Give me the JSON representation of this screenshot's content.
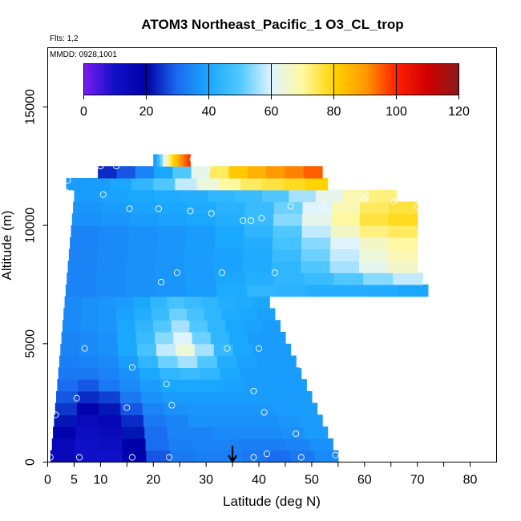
{
  "chart_data": {
    "type": "heatmap",
    "title": "ATOM3 Northeast_Pacific_1 O3_CL_trop",
    "annotations": [
      "Flts: 1,2",
      "MMDD: 0928,1001"
    ],
    "xlabel": "Latitude (deg N)",
    "ylabel": "Altitude (m)",
    "xlim": [
      0,
      85
    ],
    "ylim": [
      0,
      17500
    ],
    "x_ticks": [
      0,
      5,
      10,
      20,
      30,
      40,
      50,
      60,
      70,
      80
    ],
    "y_ticks": [
      0,
      5000,
      10000,
      15000
    ],
    "colorbar": {
      "min": 0,
      "max": 120,
      "ticks": [
        0,
        20,
        40,
        60,
        80,
        100,
        120
      ],
      "colors": [
        "#7a1cf0",
        "#1010c8",
        "#0000a8",
        "#1a6cf0",
        "#1aa8ff",
        "#50c8ff",
        "#dff4ff",
        "#fff8a0",
        "#ffd400",
        "#ff9a00",
        "#ff2000",
        "#d00000",
        "#8c1a1a"
      ]
    },
    "layers": [
      {
        "alt": [
          0,
          500
        ],
        "lat": [
          0.5,
          55
        ],
        "values": [
          15,
          10,
          10,
          18,
          28,
          32,
          33,
          33,
          32,
          30,
          32,
          35
        ]
      },
      {
        "alt": [
          500,
          1000
        ],
        "lat": [
          0.8,
          54
        ],
        "values": [
          15,
          10,
          12,
          20,
          30,
          33,
          34,
          34,
          33,
          33,
          34,
          36
        ]
      },
      {
        "alt": [
          1000,
          1500
        ],
        "lat": [
          1.0,
          53
        ],
        "values": [
          18,
          12,
          14,
          22,
          30,
          34,
          34,
          35,
          35,
          35,
          36,
          38
        ]
      },
      {
        "alt": [
          1500,
          2000
        ],
        "lat": [
          1.2,
          52
        ],
        "values": [
          22,
          14,
          16,
          24,
          32,
          34,
          36,
          36,
          36,
          36,
          37,
          38
        ]
      },
      {
        "alt": [
          2000,
          2500
        ],
        "lat": [
          1.4,
          51
        ],
        "values": [
          25,
          18,
          22,
          28,
          34,
          36,
          37,
          37,
          37,
          37,
          38,
          38
        ]
      },
      {
        "alt": [
          2500,
          3000
        ],
        "lat": [
          1.6,
          50
        ],
        "values": [
          28,
          24,
          26,
          32,
          36,
          38,
          38,
          38,
          38,
          38,
          38,
          38
        ]
      },
      {
        "alt": [
          3000,
          3500
        ],
        "lat": [
          1.8,
          49
        ],
        "values": [
          30,
          28,
          32,
          35,
          38,
          40,
          40,
          40,
          39,
          38,
          38,
          38
        ]
      },
      {
        "alt": [
          3500,
          4000
        ],
        "lat": [
          2.0,
          48
        ],
        "values": [
          32,
          32,
          34,
          36,
          40,
          44,
          46,
          44,
          40,
          38,
          38,
          38
        ]
      },
      {
        "alt": [
          4000,
          4500
        ],
        "lat": [
          2.2,
          47
        ],
        "values": [
          33,
          34,
          35,
          38,
          44,
          52,
          56,
          50,
          42,
          39,
          38,
          38
        ]
      },
      {
        "alt": [
          4500,
          5000
        ],
        "lat": [
          2.4,
          46
        ],
        "values": [
          34,
          35,
          36,
          40,
          48,
          58,
          64,
          56,
          45,
          40,
          38,
          38
        ]
      },
      {
        "alt": [
          5000,
          5500
        ],
        "lat": [
          2.6,
          45
        ],
        "values": [
          34,
          35,
          36,
          40,
          46,
          54,
          60,
          52,
          44,
          40,
          38,
          38
        ]
      },
      {
        "alt": [
          5500,
          6000
        ],
        "lat": [
          2.8,
          44
        ],
        "values": [
          35,
          36,
          37,
          40,
          44,
          50,
          56,
          50,
          44,
          40,
          39,
          38
        ]
      },
      {
        "alt": [
          6000,
          6500
        ],
        "lat": [
          3.0,
          43
        ],
        "values": [
          35,
          36,
          37,
          39,
          42,
          46,
          52,
          48,
          44,
          41,
          40,
          39
        ]
      },
      {
        "alt": [
          6500,
          7000
        ],
        "lat": [
          3.2,
          42
        ],
        "values": [
          35,
          36,
          37,
          38,
          40,
          44,
          48,
          46,
          44,
          42,
          41,
          40
        ]
      },
      {
        "alt": [
          7000,
          7500
        ],
        "lat": [
          3.4,
          72
        ],
        "values": [
          34,
          35,
          36,
          37,
          38,
          41,
          44,
          43,
          42,
          42,
          41,
          40
        ]
      },
      {
        "alt": [
          7500,
          8000
        ],
        "lat": [
          3.6,
          71
        ],
        "values": [
          34,
          35,
          36,
          37,
          38,
          40,
          42,
          44,
          46,
          50,
          54,
          58
        ]
      },
      {
        "alt": [
          8000,
          8500
        ],
        "lat": [
          3.8,
          70
        ],
        "values": [
          34,
          35,
          36,
          37,
          38,
          39,
          41,
          44,
          50,
          56,
          62,
          66
        ]
      },
      {
        "alt": [
          8500,
          9000
        ],
        "lat": [
          4.0,
          70
        ],
        "values": [
          34,
          35,
          36,
          37,
          38,
          39,
          41,
          46,
          52,
          58,
          64,
          68
        ]
      },
      {
        "alt": [
          9000,
          9500
        ],
        "lat": [
          4.2,
          70
        ],
        "values": [
          34,
          35,
          36,
          37,
          38,
          40,
          42,
          48,
          54,
          60,
          66,
          70
        ]
      },
      {
        "alt": [
          9500,
          10000
        ],
        "lat": [
          4.4,
          70
        ],
        "values": [
          34,
          35,
          36,
          37,
          38,
          40,
          44,
          50,
          58,
          66,
          72,
          74
        ]
      },
      {
        "alt": [
          10000,
          10500
        ],
        "lat": [
          4.6,
          70
        ],
        "values": [
          36,
          37,
          38,
          39,
          40,
          42,
          46,
          54,
          62,
          70,
          76,
          78
        ]
      },
      {
        "alt": [
          10500,
          11000
        ],
        "lat": [
          4.8,
          70
        ],
        "values": [
          37,
          38,
          39,
          40,
          41,
          43,
          46,
          52,
          60,
          68,
          74,
          76
        ]
      },
      {
        "alt": [
          11000,
          11500
        ],
        "lat": [
          5.0,
          66
        ],
        "values": [
          38,
          39,
          40,
          41,
          42,
          44,
          46,
          50,
          56,
          62,
          68,
          72
        ]
      },
      {
        "alt": [
          11500,
          12000
        ],
        "lat": [
          3.5,
          53
        ],
        "values": [
          38,
          38,
          40,
          44,
          50,
          58,
          64,
          70,
          74,
          76,
          78,
          80
        ]
      },
      {
        "alt": [
          12000,
          12500
        ],
        "lat": [
          9.5,
          52
        ],
        "values": [
          24,
          28,
          34,
          40,
          50,
          62,
          74,
          82,
          86,
          90,
          92,
          95
        ]
      },
      {
        "alt": [
          12500,
          13000
        ],
        "lat": [
          20.0,
          27
        ],
        "values": [
          38,
          44,
          52,
          60,
          68,
          74,
          80,
          84,
          88,
          92,
          95,
          98
        ]
      }
    ],
    "points": [
      [
        0.5,
        200
      ],
      [
        6,
        200
      ],
      [
        16,
        200
      ],
      [
        23,
        200
      ],
      [
        39,
        200
      ],
      [
        48,
        200
      ],
      [
        54.5,
        300
      ],
      [
        41.5,
        350
      ],
      [
        47,
        1200
      ],
      [
        41,
        2100
      ],
      [
        15,
        2300
      ],
      [
        1.5,
        2000
      ],
      [
        23.5,
        2400
      ],
      [
        39,
        3000
      ],
      [
        5.5,
        2700
      ],
      [
        22.5,
        3300
      ],
      [
        16,
        4000
      ],
      [
        53,
        4000
      ],
      [
        48,
        4100
      ],
      [
        7,
        4800
      ],
      [
        40,
        4800
      ],
      [
        34,
        4800
      ],
      [
        55.5,
        6200
      ],
      [
        21.5,
        7600
      ],
      [
        24.5,
        8000
      ],
      [
        33,
        8000
      ],
      [
        43,
        8000
      ],
      [
        3,
        9300
      ],
      [
        15.5,
        10700
      ],
      [
        21,
        10700
      ],
      [
        27,
        10600
      ],
      [
        31,
        10500
      ],
      [
        37,
        10200
      ],
      [
        38.5,
        10200
      ],
      [
        40.5,
        10300
      ],
      [
        46,
        10800
      ],
      [
        52,
        10800
      ],
      [
        60,
        11100
      ],
      [
        65.5,
        11000
      ],
      [
        70,
        10800
      ],
      [
        3.5,
        11400
      ],
      [
        10.5,
        11300
      ],
      [
        3.8,
        11900
      ],
      [
        10,
        12500
      ],
      [
        13,
        12500
      ],
      [
        27.5,
        12800
      ],
      [
        30.5,
        12500
      ]
    ],
    "marker": {
      "lat": 35,
      "label": "down-arrow"
    }
  }
}
